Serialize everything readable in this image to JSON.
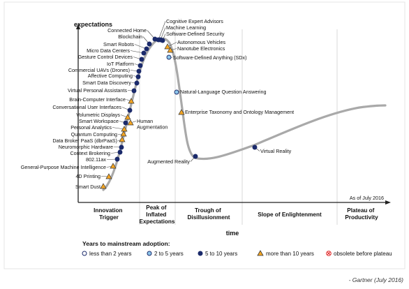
{
  "chart_data": {
    "type": "scatter",
    "ylabel": "expectations",
    "xlabel": "time",
    "as_of": "As of July 2016",
    "phases": [
      "Innovation Trigger",
      "Peak of Inflated Expectations",
      "Trough of Disillusionment",
      "Slope of Enlightenment",
      "Plateau of Productivity"
    ],
    "legend": {
      "title": "Years to mainstream adoption:",
      "items": [
        {
          "key": "lt2",
          "label": "less than 2 years",
          "color": "#ffffff"
        },
        {
          "key": "2to5",
          "label": "2 to 5 years",
          "color": "#8cc6ea"
        },
        {
          "key": "5to10",
          "label": "5 to 10 years",
          "color": "#1b2a6b"
        },
        {
          "key": "gt10",
          "label": "more than 10 years",
          "color": "#f5a623"
        },
        {
          "key": "obsolete",
          "label": "obsolete before plateau",
          "color": "#e02020"
        }
      ]
    },
    "points": [
      {
        "name": "Smart Dust",
        "t": 0.0,
        "cat": "gt10"
      },
      {
        "name": "4D Printing",
        "t": 0.018,
        "cat": "gt10"
      },
      {
        "name": "General-Purpose Machine Intelligence",
        "t": 0.035,
        "cat": "gt10"
      },
      {
        "name": "802.11ax",
        "t": 0.052,
        "cat": "5to10"
      },
      {
        "name": "Context Brokering",
        "t": 0.068,
        "cat": "5to10"
      },
      {
        "name": "Neuromorphic Hardware",
        "t": 0.082,
        "cat": "5to10"
      },
      {
        "name": "Data Broker PaaS (dbrPaaS)",
        "t": 0.097,
        "cat": "gt10"
      },
      {
        "name": "Quantum Computing",
        "t": 0.11,
        "cat": "gt10"
      },
      {
        "name": "Personal Analytics",
        "t": 0.124,
        "cat": "gt10"
      },
      {
        "name": "Smart Workspace",
        "t": 0.138,
        "cat": "5to10"
      },
      {
        "name": "Volumetric Displays",
        "t": 0.152,
        "cat": "gt10"
      },
      {
        "name": "Conversational User Interfaces",
        "t": 0.167,
        "cat": "5to10"
      },
      {
        "name": "Brain-Computer Interface",
        "t": 0.182,
        "cat": "gt10"
      },
      {
        "name": "Virtual Personal Assistants",
        "t": 0.2,
        "cat": "5to10"
      },
      {
        "name": "Smart Data Discovery",
        "t": 0.225,
        "cat": "5to10"
      },
      {
        "name": "Affective Computing",
        "t": 0.241,
        "cat": "5to10"
      },
      {
        "name": "Commercial UAVs (Drones)",
        "t": 0.256,
        "cat": "5to10"
      },
      {
        "name": "IoT Platform",
        "t": 0.272,
        "cat": "5to10"
      },
      {
        "name": "Gesture Control Devices",
        "t": 0.288,
        "cat": "5to10"
      },
      {
        "name": "Micro Data Centers",
        "t": 0.304,
        "cat": "5to10"
      },
      {
        "name": "Smart Robots",
        "t": 0.32,
        "cat": "5to10"
      },
      {
        "name": "Blockchain",
        "t": 0.34,
        "cat": "5to10"
      },
      {
        "name": "Connected Home",
        "t": 0.36,
        "cat": "5to10"
      },
      {
        "name": "Cognitive Expert Advisors",
        "t": 0.39,
        "cat": "5to10"
      },
      {
        "name": "Machine Learning",
        "t": 0.405,
        "cat": "5to10"
      },
      {
        "name": "Software-Defined Security",
        "t": 0.42,
        "cat": "5to10"
      },
      {
        "name": "Autonomous Vehicles",
        "t": 0.45,
        "cat": "gt10"
      },
      {
        "name": "Nanotube Electronics",
        "t": 0.468,
        "cat": "gt10"
      },
      {
        "name": "Software-Defined Anything (SDx)",
        "t": 0.495,
        "cat": "2to5"
      },
      {
        "name": "Natural-Language Question Answering",
        "t": 0.565,
        "cat": "2to5"
      },
      {
        "name": "Enterprise Taxonomy and Ontology Management",
        "t": 0.64,
        "cat": "gt10"
      },
      {
        "name": "Human Augmentation",
        "t": 0.0,
        "cat": "gt10"
      },
      {
        "name": "Augmented Reality",
        "t": 0.9,
        "cat": "5to10"
      },
      {
        "name": "Virtual Reality",
        "t": 0.98,
        "cat": "5to10"
      }
    ]
  },
  "credit": "- Gartner (July 2016)"
}
